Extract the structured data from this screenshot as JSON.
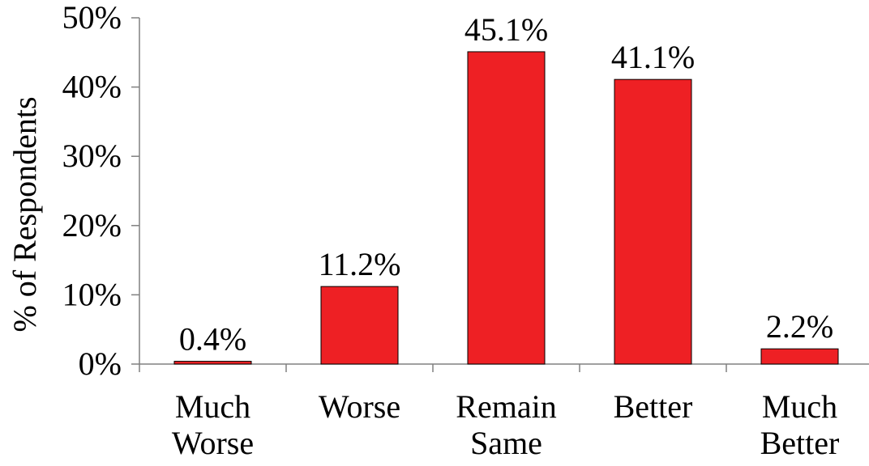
{
  "chart_data": {
    "type": "bar",
    "categories": [
      [
        "Much",
        "Worse"
      ],
      [
        "Worse"
      ],
      [
        "Remain",
        "Same"
      ],
      [
        "Better"
      ],
      [
        "Much",
        "Better"
      ]
    ],
    "values": [
      0.4,
      11.2,
      45.1,
      41.1,
      2.2
    ],
    "data_labels": [
      "0.4%",
      "11.2%",
      "45.1%",
      "41.1%",
      "2.2%"
    ],
    "ylabel": "% of Respondents",
    "xlabel": "",
    "ylim": [
      0,
      50
    ],
    "yticks": [
      0,
      10,
      20,
      30,
      40,
      50
    ],
    "ytick_labels": [
      "0%",
      "10%",
      "20%",
      "30%",
      "40%",
      "50%"
    ],
    "grid": false,
    "bar_color": "#ee2024",
    "bar_edge_color": "#000000",
    "axis_color": "#808080",
    "text_color": "#000000"
  }
}
